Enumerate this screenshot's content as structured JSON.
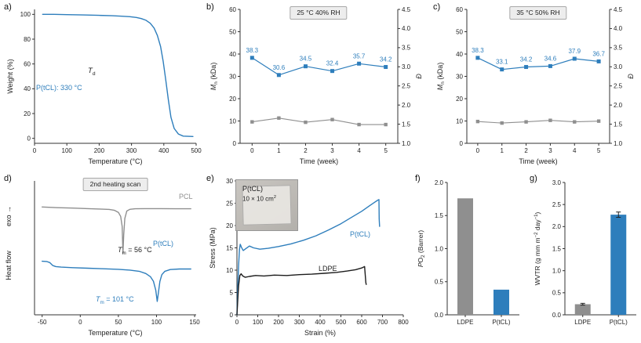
{
  "colors": {
    "blue": "#2e7ebc",
    "gray": "#8f8f8f",
    "black": "#1c1c1c",
    "axis": "#333333",
    "title_box_bg": "#ededed",
    "title_box_border": "#a8a8a8"
  },
  "chart_data": [
    {
      "panel": "a",
      "panel_label": "a)",
      "type": "line",
      "xlabel": "Temperature (°C)",
      "ylabel": [
        {
          "t": "Weight (%)"
        }
      ],
      "xlim": [
        0,
        500
      ],
      "ylim": [
        -4,
        104
      ],
      "xticks": [
        [
          0,
          "0"
        ],
        [
          100,
          "100"
        ],
        [
          200,
          "200"
        ],
        [
          300,
          "300"
        ],
        [
          400,
          "400"
        ],
        [
          500,
          "500"
        ]
      ],
      "yticks": [
        [
          0,
          "0"
        ],
        [
          20,
          "20"
        ],
        [
          40,
          "40"
        ],
        [
          60,
          "60"
        ],
        [
          80,
          "80"
        ],
        [
          100,
          "100"
        ]
      ],
      "annotations": {
        "td": {
          "t": "T",
          "sub": "d"
        },
        "td_value": "P(tCL): 330 °C"
      },
      "series": [
        {
          "name": "P(tCL)",
          "color": "blue",
          "x": [
            25,
            60,
            100,
            150,
            200,
            240,
            270,
            295,
            315,
            330,
            345,
            358,
            370,
            380,
            390,
            398,
            406,
            414,
            422,
            432,
            445,
            460,
            490
          ],
          "y": [
            100,
            100,
            99.8,
            99.5,
            99.2,
            98.9,
            98.5,
            98.1,
            97.5,
            96.6,
            95.2,
            92.8,
            89,
            83,
            74,
            62,
            47,
            31,
            17,
            8,
            3.5,
            1.8,
            1.5
          ]
        }
      ]
    },
    {
      "panel": "b",
      "panel_label": "b)",
      "type": "dual-axis-scatter-line",
      "title": "25 °C 40% RH",
      "xlabel": "Time (week)",
      "ylabel_left": [
        {
          "t": "M",
          "i": true
        },
        {
          "t": "n",
          "sub": true
        },
        {
          "t": " (kDa)"
        }
      ],
      "ylabel_right": [
        {
          "t": "Đ",
          "i": true
        }
      ],
      "xlim": [
        -0.45,
        5.45
      ],
      "ylim_left": [
        0,
        60
      ],
      "ylim_right": [
        1.0,
        4.5
      ],
      "xticks": [
        [
          0,
          "0"
        ],
        [
          1,
          "1"
        ],
        [
          2,
          "2"
        ],
        [
          3,
          "3"
        ],
        [
          4,
          "4"
        ],
        [
          5,
          "5"
        ]
      ],
      "yticks_left": [
        [
          0,
          "0"
        ],
        [
          10,
          "10"
        ],
        [
          20,
          "20"
        ],
        [
          30,
          "30"
        ],
        [
          40,
          "40"
        ],
        [
          50,
          "50"
        ],
        [
          60,
          "60"
        ]
      ],
      "yticks_right": [
        [
          1.0,
          "1.0"
        ],
        [
          1.5,
          "1.5"
        ],
        [
          2.0,
          "2.0"
        ],
        [
          2.5,
          "2.5"
        ],
        [
          3.0,
          "3.0"
        ],
        [
          3.5,
          "3.5"
        ],
        [
          4.0,
          "4.0"
        ],
        [
          4.5,
          "4.5"
        ]
      ],
      "x": [
        0,
        1,
        2,
        3,
        4,
        5
      ],
      "mn": [
        38.3,
        30.6,
        34.5,
        32.4,
        35.7,
        34.2
      ],
      "dispersity": [
        1.56,
        1.66,
        1.55,
        1.62,
        1.49,
        1.49
      ]
    },
    {
      "panel": "c",
      "panel_label": "c)",
      "type": "dual-axis-scatter-line",
      "title": "35 °C 50% RH",
      "xlabel": "Time (week)",
      "ylabel_left": [
        {
          "t": "M",
          "i": true
        },
        {
          "t": "n",
          "sub": true
        },
        {
          "t": " (kDa)"
        }
      ],
      "ylabel_right": [
        {
          "t": "Đ",
          "i": true
        }
      ],
      "xlim": [
        -0.45,
        5.45
      ],
      "ylim_left": [
        0,
        60
      ],
      "ylim_right": [
        1.0,
        4.5
      ],
      "xticks": [
        [
          0,
          "0"
        ],
        [
          1,
          "1"
        ],
        [
          2,
          "2"
        ],
        [
          3,
          "3"
        ],
        [
          4,
          "4"
        ],
        [
          5,
          "5"
        ]
      ],
      "yticks_left": [
        [
          0,
          "0"
        ],
        [
          10,
          "10"
        ],
        [
          20,
          "20"
        ],
        [
          30,
          "30"
        ],
        [
          40,
          "40"
        ],
        [
          50,
          "50"
        ],
        [
          60,
          "60"
        ]
      ],
      "yticks_right": [
        [
          1.0,
          "1.0"
        ],
        [
          1.5,
          "1.5"
        ],
        [
          2.0,
          "2.0"
        ],
        [
          2.5,
          "2.5"
        ],
        [
          3.0,
          "3.0"
        ],
        [
          3.5,
          "3.5"
        ],
        [
          4.0,
          "4.0"
        ],
        [
          4.5,
          "4.5"
        ]
      ],
      "x": [
        0,
        1,
        2,
        3,
        4,
        5
      ],
      "mn": [
        38.3,
        33.1,
        34.2,
        34.6,
        37.9,
        36.7
      ],
      "dispersity": [
        1.57,
        1.53,
        1.56,
        1.6,
        1.56,
        1.58
      ]
    },
    {
      "panel": "d",
      "panel_label": "d)",
      "type": "line",
      "title": "2nd heating scan",
      "xlabel": "Temperature (°C)",
      "ylabel": [
        {
          "t": "Heat flow"
        }
      ],
      "exo": "exo",
      "xlim": [
        -60,
        152
      ],
      "ylim": [
        0,
        1
      ],
      "xticks": [
        [
          -50,
          "-50"
        ],
        [
          0,
          "0"
        ],
        [
          50,
          "50"
        ],
        [
          100,
          "100"
        ],
        [
          150,
          "150"
        ]
      ],
      "annotations": {
        "tm1": {
          "t": "T",
          "sub": "m",
          "rest": " = 56 °C"
        },
        "tm2": {
          "t": "T",
          "sub": "m",
          "rest": " = 101 °C"
        }
      },
      "series": [
        {
          "name": "PCL",
          "color": "gray",
          "melting_point_c": 56,
          "x": [
            -50,
            -30,
            -10,
            10,
            25,
            38,
            45,
            50,
            53,
            55,
            56,
            57,
            58.5,
            61,
            65,
            72,
            85,
            105,
            125,
            145
          ],
          "y": [
            0.805,
            0.8,
            0.797,
            0.793,
            0.79,
            0.787,
            0.78,
            0.765,
            0.735,
            0.66,
            0.46,
            0.6,
            0.72,
            0.775,
            0.788,
            0.792,
            0.793,
            0.793,
            0.792,
            0.792
          ]
        },
        {
          "name": "P(tCL)",
          "color": "blue",
          "melting_point_c": 101,
          "x": [
            -50,
            -44,
            -40,
            -36,
            -32,
            -25,
            -10,
            10,
            30,
            50,
            65,
            78,
            86,
            92,
            96,
            99,
            101,
            102.5,
            104.5,
            107,
            111,
            118,
            130,
            145
          ],
          "y": [
            0.4,
            0.398,
            0.39,
            0.368,
            0.36,
            0.356,
            0.352,
            0.348,
            0.344,
            0.34,
            0.334,
            0.324,
            0.308,
            0.285,
            0.25,
            0.185,
            0.1,
            0.165,
            0.25,
            0.3,
            0.325,
            0.338,
            0.342,
            0.342
          ]
        }
      ]
    },
    {
      "panel": "e",
      "panel_label": "e)",
      "type": "line",
      "xlabel": "Strain (%)",
      "ylabel": [
        {
          "t": "Stress (MPa)"
        }
      ],
      "xlim": [
        0,
        800
      ],
      "ylim": [
        0,
        30
      ],
      "xticks": [
        [
          0,
          "0"
        ],
        [
          100,
          "100"
        ],
        [
          200,
          "200"
        ],
        [
          300,
          "300"
        ],
        [
          400,
          "400"
        ],
        [
          500,
          "500"
        ],
        [
          600,
          "600"
        ],
        [
          700,
          "700"
        ],
        [
          800,
          "800"
        ]
      ],
      "yticks": [
        [
          0,
          "0"
        ],
        [
          5,
          "5"
        ],
        [
          10,
          "10"
        ],
        [
          15,
          "15"
        ],
        [
          20,
          "20"
        ],
        [
          25,
          "25"
        ],
        [
          30,
          "30"
        ]
      ],
      "inset": {
        "name": "P(tCL)",
        "size": "10 × 10 cm",
        "sup": "2"
      },
      "series": [
        {
          "name": "P(tCL)",
          "color": "blue",
          "x": [
            0,
            4,
            8,
            12,
            16,
            22,
            30,
            45,
            60,
            80,
            110,
            150,
            200,
            260,
            320,
            380,
            440,
            500,
            550,
            600,
            640,
            665,
            678,
            683,
            684,
            686
          ],
          "y": [
            0,
            6,
            11,
            14.6,
            15.8,
            15.1,
            14.4,
            14.9,
            15.4,
            15,
            14.7,
            14.9,
            15.3,
            15.9,
            16.7,
            17.7,
            19,
            20.4,
            21.8,
            23.2,
            24.5,
            25.3,
            25.7,
            25.8,
            21.5,
            19.8
          ]
        },
        {
          "name": "LDPE",
          "color": "black",
          "x": [
            0,
            4,
            8,
            14,
            20,
            28,
            40,
            60,
            90,
            130,
            180,
            240,
            300,
            360,
            420,
            480,
            530,
            570,
            600,
            614,
            620,
            622
          ],
          "y": [
            0,
            3.5,
            6.5,
            8.8,
            9.2,
            8.7,
            8.4,
            8.6,
            8.8,
            8.7,
            8.9,
            8.8,
            9,
            9.1,
            9.3,
            9.5,
            9.8,
            10.1,
            10.5,
            10.8,
            7.2,
            6.8
          ]
        }
      ]
    },
    {
      "panel": "f",
      "panel_label": "f)",
      "type": "bar",
      "ylabel": [
        {
          "t": "P",
          "i": true
        },
        {
          "t": "O"
        },
        {
          "t": "2",
          "sub": true
        },
        {
          "t": " (Barrer)"
        }
      ],
      "categories": [
        "LDPE",
        "P(tCL)"
      ],
      "values": [
        1.76,
        0.38
      ],
      "bar_colors": [
        "gray",
        "blue"
      ],
      "ylim": [
        0,
        2.0
      ],
      "yticks": [
        [
          0,
          "0.0"
        ],
        [
          0.5,
          "0.5"
        ],
        [
          1.0,
          "1.0"
        ],
        [
          1.5,
          "1.5"
        ],
        [
          2.0,
          "2.0"
        ]
      ]
    },
    {
      "panel": "g",
      "panel_label": "g)",
      "type": "bar",
      "ylabel": [
        {
          "t": "WVTR (g mm m"
        },
        {
          "t": "−2",
          "sup": true
        },
        {
          "t": " day"
        },
        {
          "t": "−1",
          "sup": true
        },
        {
          "t": ")"
        }
      ],
      "categories": [
        "LDPE",
        "P(tCL)"
      ],
      "values": [
        0.24,
        2.27
      ],
      "errors": [
        0.02,
        0.06
      ],
      "bar_colors": [
        "gray",
        "blue"
      ],
      "ylim": [
        0,
        3.0
      ],
      "yticks": [
        [
          0,
          "0.0"
        ],
        [
          0.5,
          "0.5"
        ],
        [
          1.0,
          "1.0"
        ],
        [
          1.5,
          "1.5"
        ],
        [
          2.0,
          "2.0"
        ],
        [
          2.5,
          "2.5"
        ],
        [
          3.0,
          "3.0"
        ]
      ]
    }
  ]
}
